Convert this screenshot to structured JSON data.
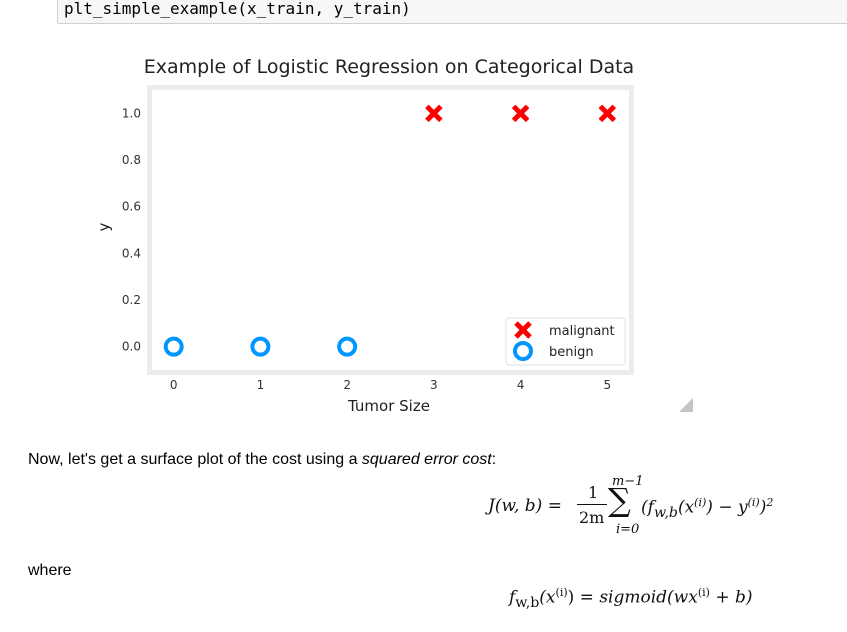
{
  "code_cell": {
    "code": "plt_simple_example(x_train, y_train)"
  },
  "chart_data": {
    "type": "scatter",
    "title": "Example of Logistic Regression on Categorical Data",
    "xlabel": "Tumor Size",
    "ylabel": "y",
    "xlim": [
      -0.25,
      5.25
    ],
    "ylim": [
      -0.1,
      1.1
    ],
    "xticks": [
      0,
      1,
      2,
      3,
      4,
      5
    ],
    "yticks": [
      0.0,
      0.2,
      0.4,
      0.6,
      0.8,
      1.0
    ],
    "ytick_labels": [
      "0.0",
      "0.2",
      "0.4",
      "0.6",
      "0.8",
      "1.0"
    ],
    "grid": false,
    "legend_position": "lower right",
    "series": [
      {
        "name": "malignant",
        "marker": "x",
        "color": "#ff0000",
        "x": [
          3,
          4,
          5
        ],
        "y": [
          1,
          1,
          1
        ]
      },
      {
        "name": "benign",
        "marker": "o",
        "color": "#0096ff",
        "x": [
          0,
          1,
          2
        ],
        "y": [
          0,
          0,
          0
        ]
      }
    ]
  },
  "text": {
    "intro_before": "Now, let's get a surface plot of the cost using a ",
    "intro_em": "squared error cost",
    "intro_after": ":",
    "where": "where"
  },
  "equation_cost": {
    "lhs": "J(w, b) =",
    "frac_num": "1",
    "frac_den": "2m",
    "sum_upper": "m−1",
    "sum_lower": "i=0",
    "sum_symbol": "∑",
    "body_open": "(f",
    "fsub": "w,b",
    "body_mid": "(x",
    "sup_i": "(i)",
    "body_minus": ") − y",
    "body_close": ")",
    "square": "2"
  },
  "equation_model": {
    "f": "f",
    "fsub": "w,b",
    "arg": "(x",
    "sup_i": "(i)",
    "eq": ") = ",
    "rhs": "sigmoid(wx",
    "rhs_sup": "(i)",
    "rhs_end": " + b)"
  }
}
